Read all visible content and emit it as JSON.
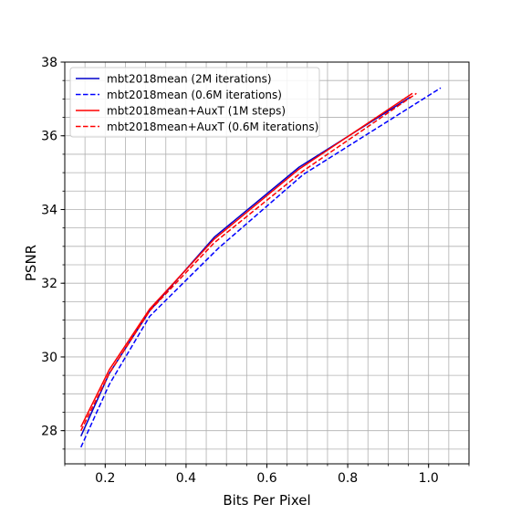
{
  "chart_data": {
    "type": "line",
    "title": "",
    "xlabel": "Bits Per Pixel",
    "ylabel": "PSNR",
    "xlim": [
      0.1,
      1.1
    ],
    "ylim": [
      27.1,
      38.0
    ],
    "x_ticks": [
      {
        "value": 0.2,
        "label": "0.2"
      },
      {
        "value": 0.4,
        "label": "0.4"
      },
      {
        "value": 0.6,
        "label": "0.6"
      },
      {
        "value": 0.8,
        "label": "0.8"
      },
      {
        "value": 1.0,
        "label": "1.0"
      }
    ],
    "y_ticks": [
      {
        "value": 28,
        "label": "28"
      },
      {
        "value": 30,
        "label": "30"
      },
      {
        "value": 32,
        "label": "32"
      },
      {
        "value": 34,
        "label": "34"
      },
      {
        "value": 36,
        "label": "36"
      },
      {
        "value": 38,
        "label": "38"
      }
    ],
    "x_minor_step": 0.05,
    "y_minor_step": 0.5,
    "grid": true,
    "legend_position": "top-left",
    "series": [
      {
        "name": "mbt2018mean (2M iterations)",
        "color": "#0000cc",
        "style": "solid",
        "points": [
          [
            0.14,
            27.85
          ],
          [
            0.21,
            29.55
          ],
          [
            0.31,
            31.25
          ],
          [
            0.47,
            33.25
          ],
          [
            0.68,
            35.15
          ],
          [
            0.955,
            37.05
          ]
        ]
      },
      {
        "name": "mbt2018mean (0.6M iterations)",
        "color": "#0000ff",
        "style": "dashed",
        "points": [
          [
            0.14,
            27.55
          ],
          [
            0.21,
            29.25
          ],
          [
            0.31,
            31.1
          ],
          [
            0.48,
            32.95
          ],
          [
            0.69,
            34.95
          ],
          [
            1.03,
            37.3
          ]
        ]
      },
      {
        "name": "mbt2018mean+AuxT (1M steps)",
        "color": "#ff0000",
        "style": "solid",
        "points": [
          [
            0.14,
            28.1
          ],
          [
            0.21,
            29.65
          ],
          [
            0.31,
            31.3
          ],
          [
            0.47,
            33.2
          ],
          [
            0.68,
            35.1
          ],
          [
            0.96,
            37.15
          ]
        ]
      },
      {
        "name": "mbt2018mean+AuxT (0.6M iterations)",
        "color": "#ff0000",
        "style": "dashed",
        "points": [
          [
            0.14,
            28.0
          ],
          [
            0.21,
            29.55
          ],
          [
            0.31,
            31.25
          ],
          [
            0.47,
            33.1
          ],
          [
            0.69,
            35.05
          ],
          [
            0.97,
            37.15
          ]
        ]
      }
    ]
  }
}
